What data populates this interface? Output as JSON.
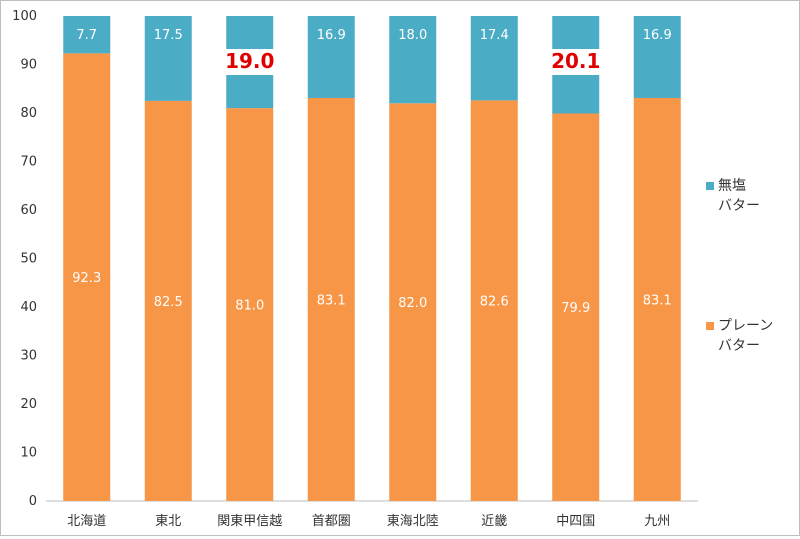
{
  "chart_data": {
    "type": "bar",
    "stacked": true,
    "categories": [
      "北海道",
      "東北",
      "関東甲信越",
      "首都圏",
      "東海北陸",
      "近畿",
      "中四国",
      "九州"
    ],
    "series": [
      {
        "name": "プレーン\nバター",
        "color": "#F79646",
        "values": [
          92.3,
          82.5,
          81.0,
          83.1,
          82.0,
          82.6,
          79.9,
          83.1
        ],
        "labels": [
          "92.3",
          "82.5",
          "81.0",
          "83.1",
          "82.0",
          "82.6",
          "79.9",
          "83.1"
        ]
      },
      {
        "name": "無塩\nバター",
        "color": "#4BACC6",
        "values": [
          7.7,
          17.5,
          19.0,
          16.9,
          18.0,
          17.4,
          20.1,
          16.9
        ],
        "labels": [
          "7.7",
          "17.5",
          "19.0",
          "16.9",
          "18.0",
          "17.4",
          "20.1",
          "16.9"
        ]
      }
    ],
    "highlighted_labels": [
      "19.0",
      "20.1"
    ],
    "highlight_color": "#E00000",
    "ylim": [
      0,
      100
    ],
    "yticks": [
      "0",
      "10",
      "20",
      "30",
      "40",
      "50",
      "60",
      "70",
      "80",
      "90",
      "100"
    ],
    "title": "",
    "xlabel": "",
    "ylabel": "",
    "legend_position": "right",
    "grid": false
  }
}
